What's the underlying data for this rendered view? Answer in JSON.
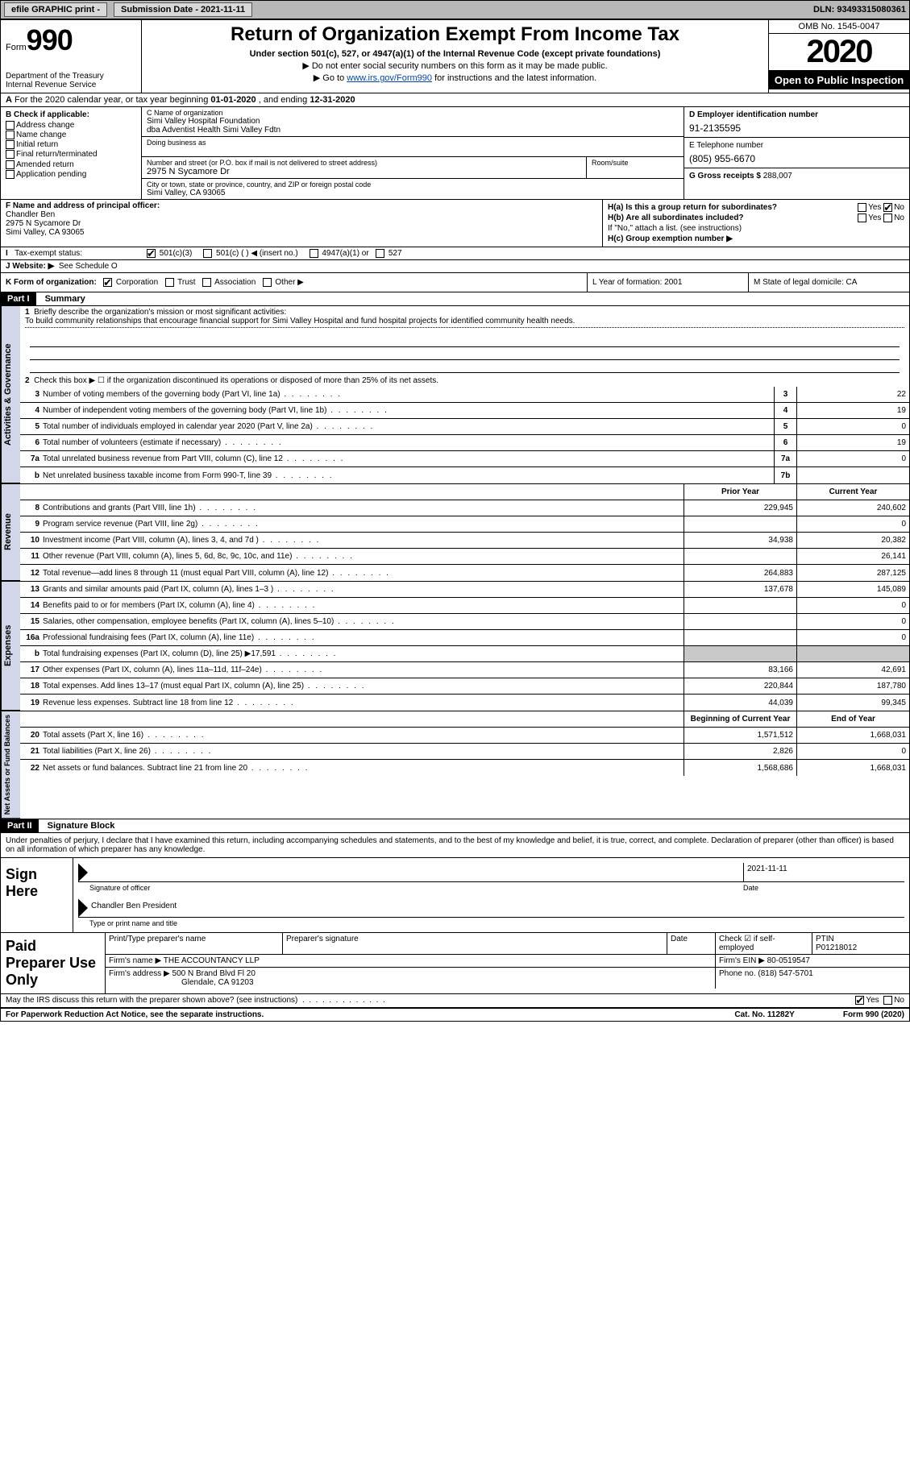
{
  "topbar": {
    "efile": "efile GRAPHIC print - ",
    "submission": "Submission Date - 2021-11-11",
    "dln": "DLN: 93493315080361"
  },
  "header": {
    "form_word": "Form",
    "form_num": "990",
    "dept": "Department of the Treasury\nInternal Revenue Service",
    "title": "Return of Organization Exempt From Income Tax",
    "sub": "Under section 501(c), 527, or 4947(a)(1) of the Internal Revenue Code (except private foundations)",
    "note1": "▶ Do not enter social security numbers on this form as it may be made public.",
    "note2_pre": "▶ Go to ",
    "note2_link": "www.irs.gov/Form990",
    "note2_post": " for instructions and the latest information.",
    "omb": "OMB No. 1545-0047",
    "year": "2020",
    "open": "Open to Public Inspection"
  },
  "row_a": {
    "pre": "For the 2020 calendar year, or tax year beginning ",
    "begin": "01-01-2020",
    "mid": " , and ending ",
    "end": "12-31-2020"
  },
  "col_b": {
    "label": "B Check if applicable:",
    "items": [
      "Address change",
      "Name change",
      "Initial return",
      "Final return/terminated",
      "Amended return",
      "Application pending"
    ]
  },
  "col_c": {
    "label_name": "C Name of organization",
    "name1": "Simi Valley Hospital Foundation",
    "name2": "dba Adventist Health Simi Valley Fdtn",
    "dba_label": "Doing business as",
    "addr_label": "Number and street (or P.O. box if mail is not delivered to street address)",
    "room_label": "Room/suite",
    "addr": "2975 N Sycamore Dr",
    "city_label": "City or town, state or province, country, and ZIP or foreign postal code",
    "city": "Simi Valley, CA  93065"
  },
  "col_d": {
    "ein_label": "D Employer identification number",
    "ein": "91-2135595",
    "phone_label": "E Telephone number",
    "phone": "(805) 955-6670",
    "gross_label": "G Gross receipts $",
    "gross": "288,007"
  },
  "row_f": {
    "label": "F Name and address of principal officer:",
    "name": "Chandler Ben",
    "addr1": "2975 N Sycamore Dr",
    "addr2": "Simi Valley, CA  93065"
  },
  "row_h": {
    "ha": "H(a)  Is this a group return for subordinates?",
    "hb": "H(b)  Are all subordinates included?",
    "hb_note": "If \"No,\" attach a list. (see instructions)",
    "hc": "H(c)  Group exemption number ▶",
    "yes": "Yes",
    "no": "No"
  },
  "row_i": {
    "label": "Tax-exempt status:",
    "o1": "501(c)(3)",
    "o2": "501(c) (   ) ◀ (insert no.)",
    "o3": "4947(a)(1) or",
    "o4": "527"
  },
  "row_j": {
    "label": "J   Website: ▶",
    "val": "See Schedule O"
  },
  "row_k": {
    "label": "K Form of organization:",
    "o1": "Corporation",
    "o2": "Trust",
    "o3": "Association",
    "o4": "Other ▶",
    "l_year": "L Year of formation: 2001",
    "m_state": "M State of legal domicile: CA"
  },
  "part1": {
    "hdr": "Part I",
    "title": "Summary",
    "vtab1": "Activities & Governance",
    "vtab2": "Revenue",
    "vtab3": "Expenses",
    "vtab4": "Net Assets or Fund Balances",
    "line1_label": "Briefly describe the organization's mission or most significant activities:",
    "line1_text": "To build community relationships that encourage financial support for Simi Valley Hospital and fund hospital projects for identified community health needs.",
    "line2": "Check this box ▶ ☐  if the organization discontinued its operations or disposed of more than 25% of its net assets.",
    "lines_gov": [
      {
        "n": "3",
        "d": "Number of voting members of the governing body (Part VI, line 1a)",
        "box": "3",
        "v": "22"
      },
      {
        "n": "4",
        "d": "Number of independent voting members of the governing body (Part VI, line 1b)",
        "box": "4",
        "v": "19"
      },
      {
        "n": "5",
        "d": "Total number of individuals employed in calendar year 2020 (Part V, line 2a)",
        "box": "5",
        "v": "0"
      },
      {
        "n": "6",
        "d": "Total number of volunteers (estimate if necessary)",
        "box": "6",
        "v": "19"
      },
      {
        "n": "7a",
        "d": "Total unrelated business revenue from Part VIII, column (C), line 12",
        "box": "7a",
        "v": "0"
      },
      {
        "n": "b",
        "d": "Net unrelated business taxable income from Form 990-T, line 39",
        "box": "7b",
        "v": ""
      }
    ],
    "col_prior": "Prior Year",
    "col_current": "Current Year",
    "lines_rev": [
      {
        "n": "8",
        "d": "Contributions and grants (Part VIII, line 1h)",
        "p": "229,945",
        "c": "240,602"
      },
      {
        "n": "9",
        "d": "Program service revenue (Part VIII, line 2g)",
        "p": "",
        "c": "0"
      },
      {
        "n": "10",
        "d": "Investment income (Part VIII, column (A), lines 3, 4, and 7d )",
        "p": "34,938",
        "c": "20,382"
      },
      {
        "n": "11",
        "d": "Other revenue (Part VIII, column (A), lines 5, 6d, 8c, 9c, 10c, and 11e)",
        "p": "",
        "c": "26,141"
      },
      {
        "n": "12",
        "d": "Total revenue—add lines 8 through 11 (must equal Part VIII, column (A), line 12)",
        "p": "264,883",
        "c": "287,125"
      }
    ],
    "lines_exp": [
      {
        "n": "13",
        "d": "Grants and similar amounts paid (Part IX, column (A), lines 1–3 )",
        "p": "137,678",
        "c": "145,089"
      },
      {
        "n": "14",
        "d": "Benefits paid to or for members (Part IX, column (A), line 4)",
        "p": "",
        "c": "0"
      },
      {
        "n": "15",
        "d": "Salaries, other compensation, employee benefits (Part IX, column (A), lines 5–10)",
        "p": "",
        "c": "0"
      },
      {
        "n": "16a",
        "d": "Professional fundraising fees (Part IX, column (A), line 11e)",
        "p": "",
        "c": "0"
      },
      {
        "n": "b",
        "d": "Total fundraising expenses (Part IX, column (D), line 25) ▶17,591",
        "p": "grey",
        "c": "grey"
      },
      {
        "n": "17",
        "d": "Other expenses (Part IX, column (A), lines 11a–11d, 11f–24e)",
        "p": "83,166",
        "c": "42,691"
      },
      {
        "n": "18",
        "d": "Total expenses. Add lines 13–17 (must equal Part IX, column (A), line 25)",
        "p": "220,844",
        "c": "187,780"
      },
      {
        "n": "19",
        "d": "Revenue less expenses. Subtract line 18 from line 12",
        "p": "44,039",
        "c": "99,345"
      }
    ],
    "col_begin": "Beginning of Current Year",
    "col_end": "End of Year",
    "lines_net": [
      {
        "n": "20",
        "d": "Total assets (Part X, line 16)",
        "p": "1,571,512",
        "c": "1,668,031"
      },
      {
        "n": "21",
        "d": "Total liabilities (Part X, line 26)",
        "p": "2,826",
        "c": "0"
      },
      {
        "n": "22",
        "d": "Net assets or fund balances. Subtract line 21 from line 20",
        "p": "1,568,686",
        "c": "1,668,031"
      }
    ]
  },
  "part2": {
    "hdr": "Part II",
    "title": "Signature Block",
    "decl": "Under penalties of perjury, I declare that I have examined this return, including accompanying schedules and statements, and to the best of my knowledge and belief, it is true, correct, and complete. Declaration of preparer (other than officer) is based on all information of which preparer has any knowledge.",
    "sign_here": "Sign Here",
    "sig_officer": "Signature of officer",
    "sig_date": "2021-11-11",
    "date_lbl": "Date",
    "officer_name": "Chandler Ben  President",
    "officer_cap": "Type or print name and title",
    "paid_prep": "Paid Preparer Use Only",
    "prep_name_lbl": "Print/Type preparer's name",
    "prep_sig_lbl": "Preparer's signature",
    "prep_date_lbl": "Date",
    "prep_check_lbl": "Check ☑ if self-employed",
    "ptin_lbl": "PTIN",
    "ptin": "P01218012",
    "firm_name_lbl": "Firm's name    ▶",
    "firm_name": "THE ACCOUNTANCY LLP",
    "firm_ein_lbl": "Firm's EIN ▶",
    "firm_ein": "80-0519547",
    "firm_addr_lbl": "Firm's address ▶",
    "firm_addr1": "500 N Brand Blvd Fl 20",
    "firm_addr2": "Glendale, CA  91203",
    "firm_phone_lbl": "Phone no.",
    "firm_phone": "(818) 547-5701",
    "discuss": "May the IRS discuss this return with the preparer shown above? (see instructions)",
    "yes": "Yes",
    "no": "No"
  },
  "footer": {
    "left": "For Paperwork Reduction Act Notice, see the separate instructions.",
    "mid": "Cat. No. 11282Y",
    "right": "Form 990 (2020)"
  }
}
